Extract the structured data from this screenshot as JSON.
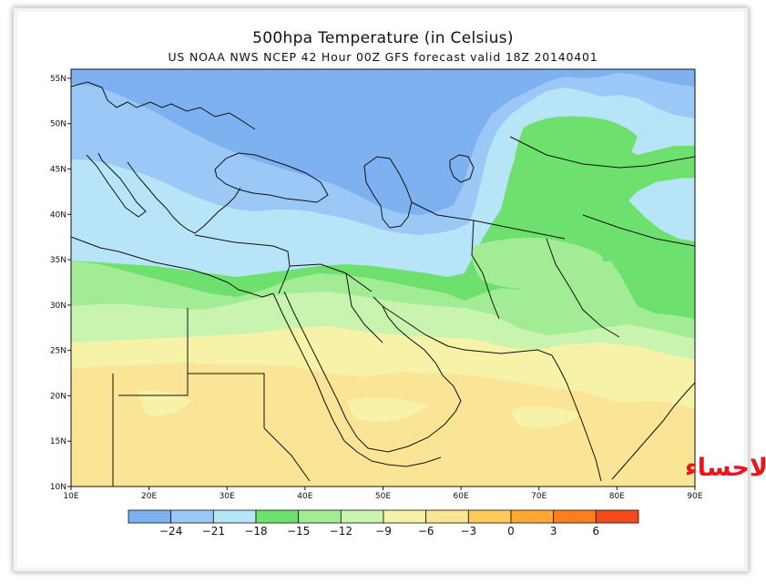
{
  "map": {
    "title": "500hpa  Temperature (in Celsius)",
    "subtitle": "US NOAA NWS NCEP 42 Hour 00Z GFS forecast valid 18Z 20140401",
    "lon_range": [
      10,
      90
    ],
    "lat_range": [
      10,
      56
    ],
    "lon_ticks": [
      "10E",
      "20E",
      "30E",
      "40E",
      "50E",
      "60E",
      "70E",
      "80E",
      "90E"
    ],
    "lat_ticks": [
      "55N",
      "50N",
      "45N",
      "40N",
      "35N",
      "30N",
      "25N",
      "20N",
      "15N",
      "10N"
    ],
    "watermark": "براري الاحساء",
    "colors": {
      "band_lt_-24": "#7eb1f0",
      "band_-24_-21": "#9bc8f6",
      "band_-21_-18": "#b8e4f8",
      "band_-18_-15": "#6ee06e",
      "band_-15_-12": "#a3ec96",
      "band_-12_-9": "#c8f4b0",
      "band_-9_-6": "#f6f2a8",
      "band_-6_-3": "#fae496",
      "band_-3_0": "#fcc95a",
      "band_0_3": "#fca832",
      "band_3_6": "#fc7e20",
      "band_gt_6": "#f44a1e"
    }
  },
  "colorbar": {
    "labels": [
      "−24",
      "−21",
      "−18",
      "−15",
      "−12",
      "−9",
      "−6",
      "−3",
      "0",
      "3",
      "6"
    ],
    "colors": [
      "#7eb1f0",
      "#9bc8f6",
      "#b8e4f8",
      "#6ee06e",
      "#a3ec96",
      "#c8f4b0",
      "#f6f2a8",
      "#fae496",
      "#fcc95a",
      "#fca832",
      "#fc7e20",
      "#f44a1e"
    ]
  }
}
